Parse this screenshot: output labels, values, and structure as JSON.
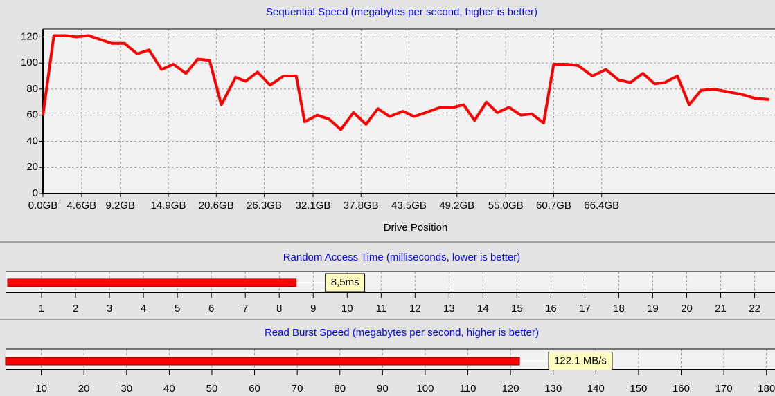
{
  "chart_data": [
    {
      "type": "line",
      "title": "Sequential Speed (megabytes per second, higher is better)",
      "x_label": "Drive Position",
      "x": [
        0,
        1.3,
        2.7,
        4.0,
        5.4,
        6.8,
        8.2,
        9.7,
        11.2,
        12.6,
        14.1,
        15.5,
        17.0,
        18.4,
        19.8,
        21.2,
        22.9,
        24.1,
        25.5,
        27.0,
        28.6,
        30.1,
        31.1,
        32.6,
        34.0,
        35.4,
        36.9,
        38.4,
        39.8,
        41.2,
        42.8,
        44.1,
        45.5,
        47.2,
        48.8,
        50.0,
        51.3,
        52.7,
        54.0,
        55.4,
        56.8,
        58.1,
        59.5,
        60.7,
        62.2,
        63.6,
        65.3,
        66.9,
        68.4,
        69.8,
        71.3,
        72.7,
        73.9,
        75.4,
        76.8,
        78.2,
        79.7,
        81.3,
        83.0,
        84.6,
        86.3
      ],
      "series": [
        {
          "name": "Sequential Speed",
          "color": "#ff0000",
          "values": [
            60,
            121,
            121,
            120,
            121,
            118,
            115,
            115,
            107,
            110,
            95,
            99,
            92,
            103,
            102,
            68,
            89,
            86,
            93,
            83,
            90,
            90,
            55,
            60,
            57,
            49,
            62,
            53,
            65,
            59,
            63,
            59,
            62,
            66,
            66,
            68,
            56,
            70,
            62,
            66,
            60,
            61,
            54,
            99,
            99,
            98,
            90,
            95,
            87,
            85,
            92,
            84,
            85,
            90,
            68,
            79,
            80,
            78,
            76,
            73,
            72
          ]
        }
      ],
      "xlim": [
        0,
        87
      ],
      "ylim": [
        0,
        126
      ],
      "xticks": [
        {
          "value": 0,
          "label": "0.0GB"
        },
        {
          "value": 4.6,
          "label": "4.6GB"
        },
        {
          "value": 9.2,
          "label": "9.2GB"
        },
        {
          "value": 14.9,
          "label": "14.9GB"
        },
        {
          "value": 20.6,
          "label": "20.6GB"
        },
        {
          "value": 26.3,
          "label": "26.3GB"
        },
        {
          "value": 32.1,
          "label": "32.1GB"
        },
        {
          "value": 37.8,
          "label": "37.8GB"
        },
        {
          "value": 43.5,
          "label": "43.5GB"
        },
        {
          "value": 49.2,
          "label": "49.2GB"
        },
        {
          "value": 55.0,
          "label": "55.0GB"
        },
        {
          "value": 60.7,
          "label": "60.7GB"
        },
        {
          "value": 66.4,
          "label": "66.4GB"
        }
      ],
      "yticks": [
        0,
        20,
        40,
        60,
        80,
        100,
        120
      ],
      "grid": true
    },
    {
      "type": "hbar",
      "title": "Random Access Time (milliseconds, lower is better)",
      "values": [
        8.5
      ],
      "value_labels": [
        "8,5ms"
      ],
      "color": "#ff0000",
      "xlim": [
        0,
        22.6
      ],
      "xticks": [
        1,
        2,
        3,
        4,
        5,
        6,
        7,
        8,
        9,
        10,
        11,
        12,
        13,
        14,
        15,
        16,
        17,
        18,
        19,
        20,
        21,
        22
      ],
      "grid": true
    },
    {
      "type": "hbar",
      "title": "Read Burst Speed (megabytes per second, higher is better)",
      "values": [
        122.1
      ],
      "value_labels": [
        "122.1 MB/s"
      ],
      "color": "#ff0000",
      "xlim": [
        0,
        182
      ],
      "xticks": [
        10,
        20,
        30,
        40,
        50,
        60,
        70,
        80,
        90,
        100,
        110,
        120,
        130,
        140,
        150,
        160,
        170,
        180
      ],
      "grid": true
    }
  ]
}
